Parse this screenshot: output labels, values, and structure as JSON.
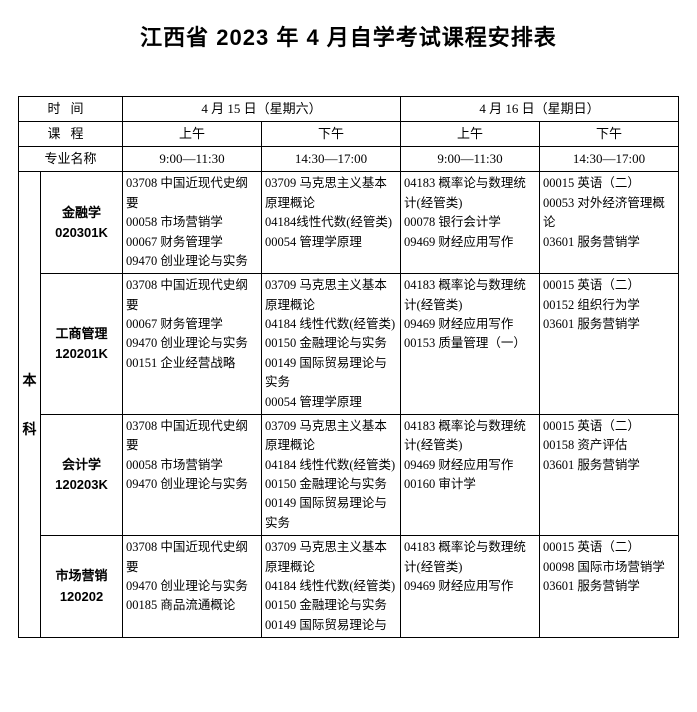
{
  "title": "江西省 2023 年 4 月自学考试课程安排表",
  "header": {
    "time_label": "时间",
    "course_label": "课程",
    "major_label": "专业名称",
    "day1": "4 月 15 日（星期六）",
    "day2": "4 月 16 日（星期日）",
    "am": "上午",
    "pm": "下午",
    "am_hours": "9:00—11:30",
    "pm_hours": "14:30—17:00"
  },
  "level_label_1": "本",
  "level_label_2": "科",
  "majors": [
    {
      "name": "金融学",
      "code": "020301K",
      "c1": "03708 中国近现代史纲要\n00058 市场营销学\n00067 财务管理学\n09470 创业理论与实务",
      "c2": "03709 马克思主义基本原理概论\n04184线性代数(经管类)\n00054 管理学原理",
      "c3": "04183 概率论与数理统计(经管类)\n00078 银行会计学\n09469 财经应用写作",
      "c4": "00015 英语（二）\n00053 对外经济管理概论\n03601 服务营销学"
    },
    {
      "name": "工商管理",
      "code": "120201K",
      "c1": "03708 中国近现代史纲要\n00067 财务管理学\n09470 创业理论与实务\n00151 企业经营战略",
      "c2": "03709 马克思主义基本原理概论\n04184 线性代数(经管类)\n00150 金融理论与实务\n00149 国际贸易理论与实务\n00054 管理学原理",
      "c3": "04183 概率论与数理统计(经管类)\n09469 财经应用写作\n00153 质量管理（一）",
      "c4": "00015 英语（二）\n00152 组织行为学\n03601 服务营销学"
    },
    {
      "name": "会计学",
      "code": "120203K",
      "c1": "03708 中国近现代史纲要\n00058 市场营销学\n09470 创业理论与实务",
      "c2": "03709 马克思主义基本原理概论\n04184 线性代数(经管类)\n00150 金融理论与实务\n00149 国际贸易理论与实务",
      "c3": "04183 概率论与数理统计(经管类)\n09469 财经应用写作\n00160 审计学",
      "c4": "00015 英语（二）\n00158 资产评估\n03601 服务营销学"
    },
    {
      "name": "市场营销",
      "code": "120202",
      "c1": "03708 中国近现代史纲要\n09470 创业理论与实务\n00185 商品流通概论",
      "c2": "03709 马克思主义基本原理概论\n04184 线性代数(经管类)\n00150 金融理论与实务\n00149 国际贸易理论与",
      "c3": "04183 概率论与数理统计(经管类)\n09469 财经应用写作",
      "c4": "00015 英语（二）\n00098 国际市场营销学\n03601 服务营销学"
    }
  ],
  "style": {
    "bg": "#ffffff",
    "border": "#000000",
    "title_fontsize": 22,
    "body_fontsize": 13,
    "cell_fontsize": 12.5,
    "line_height": 1.55
  }
}
